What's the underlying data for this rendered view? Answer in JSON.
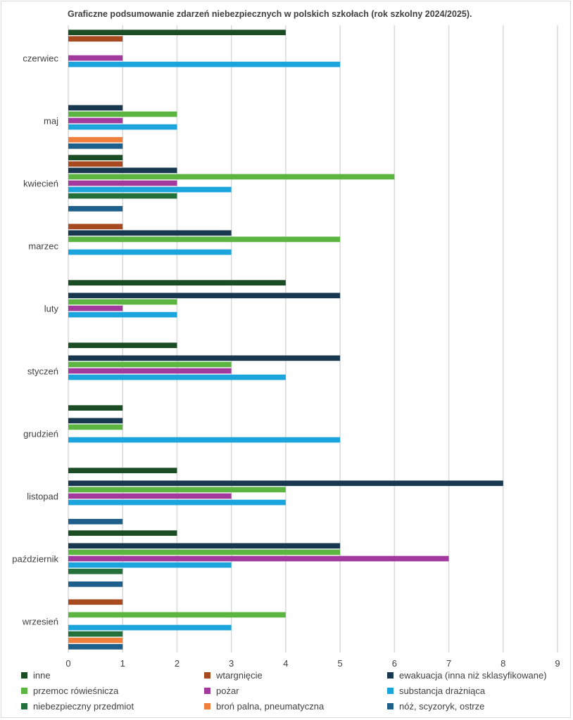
{
  "chart_data": {
    "type": "bar",
    "orientation": "horizontal",
    "title": "Graficzne podsumowanie zdarzeń niebezpiecznych w polskich szkołach (rok szkolny 2024/2025).",
    "xlabel": "",
    "ylabel": "",
    "xlim": [
      0,
      9
    ],
    "xticks": [
      "0",
      "1",
      "2",
      "3",
      "4",
      "5",
      "6",
      "7",
      "8",
      "9"
    ],
    "grid": true,
    "legend_position": "bottom",
    "categories": [
      "wrzesień",
      "październik",
      "listopad",
      "grudzień",
      "styczeń",
      "luty",
      "marzec",
      "kwiecień",
      "maj",
      "czerwiec"
    ],
    "series": [
      {
        "name": "nóż, scyzoryk, ostrze",
        "color": "#1f5f8b",
        "values": [
          1,
          1,
          1,
          0,
          0,
          0,
          0,
          1,
          1,
          0
        ]
      },
      {
        "name": "broń palna, pneumatyczna",
        "color": "#ef7f3a",
        "values": [
          1,
          0,
          0,
          0,
          0,
          0,
          0,
          0,
          1,
          0
        ]
      },
      {
        "name": "niebezpieczny przedmiot",
        "color": "#23703a",
        "values": [
          1,
          1,
          0,
          0,
          0,
          0,
          0,
          2,
          0,
          0
        ]
      },
      {
        "name": "substancja drażniąca",
        "color": "#1ca5dc",
        "values": [
          3,
          3,
          4,
          5,
          4,
          2,
          3,
          3,
          2,
          5
        ]
      },
      {
        "name": "pożar",
        "color": "#a23a9d",
        "values": [
          0,
          7,
          3,
          0,
          3,
          1,
          0,
          2,
          1,
          1
        ]
      },
      {
        "name": "przemoc rówieśnicza",
        "color": "#5cb540",
        "values": [
          4,
          5,
          4,
          1,
          3,
          2,
          5,
          6,
          2,
          0
        ]
      },
      {
        "name": "ewakuacja (inna niż sklasyfikowane)",
        "color": "#17384f",
        "values": [
          0,
          5,
          8,
          1,
          5,
          5,
          3,
          2,
          1,
          0
        ]
      },
      {
        "name": "wtargnięcie",
        "color": "#a84a1f",
        "values": [
          1,
          0,
          0,
          0,
          0,
          0,
          1,
          1,
          0,
          1
        ]
      },
      {
        "name": "inne",
        "color": "#1b4d24",
        "values": [
          0,
          2,
          2,
          1,
          2,
          4,
          0,
          1,
          0,
          4
        ]
      }
    ],
    "legend_order": [
      "inne",
      "wtargnięcie",
      "ewakuacja (inna niż sklasyfikowane)",
      "przemoc rówieśnicza",
      "pożar",
      "substancja drażniąca",
      "niebezpieczny przedmiot",
      "broń palna, pneumatyczna",
      "nóż, scyzoryk, ostrze"
    ]
  }
}
